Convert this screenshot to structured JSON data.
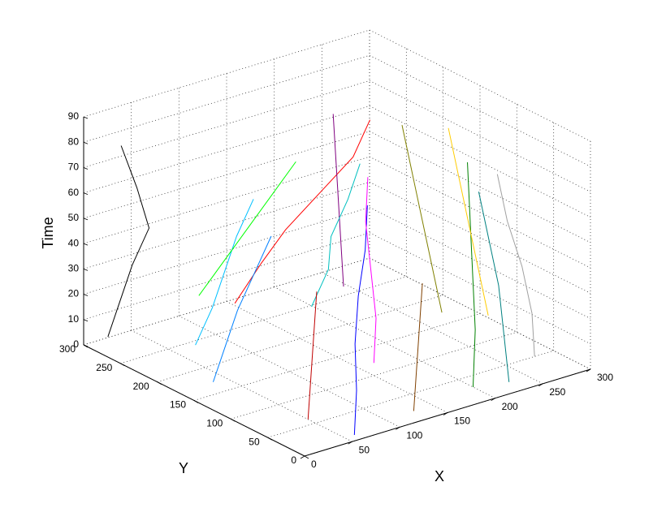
{
  "chart_data": {
    "type": "line3d",
    "xlabel": "X",
    "ylabel": "Y",
    "zlabel": "Time",
    "xlim": [
      0,
      300
    ],
    "ylim": [
      0,
      300
    ],
    "zlim": [
      0,
      90
    ],
    "xticks": [
      0,
      50,
      100,
      150,
      200,
      250,
      300
    ],
    "yticks": [
      0,
      50,
      100,
      150,
      200,
      250,
      300
    ],
    "zticks": [
      0,
      10,
      20,
      30,
      40,
      50,
      60,
      70,
      80,
      90
    ],
    "grid": true,
    "series": [
      {
        "color": "#0000ff",
        "x": [
          60,
          70,
          80,
          95,
          110,
          120
        ],
        "y": [
          10,
          20,
          35,
          50,
          60,
          70
        ],
        "z": [
          0,
          15,
          30,
          45,
          60,
          75
        ]
      },
      {
        "color": "#000000",
        "x": [
          10,
          15,
          20,
          30,
          25,
          20
        ],
        "y": [
          280,
          270,
          260,
          250,
          260,
          275
        ],
        "z": [
          5,
          20,
          35,
          50,
          65,
          80
        ]
      },
      {
        "color": "#ff0000",
        "x": [
          120,
          140,
          150,
          170,
          190,
          200
        ],
        "y": [
          250,
          240,
          220,
          200,
          180,
          170
        ],
        "z": [
          10,
          25,
          40,
          55,
          70,
          85
        ]
      },
      {
        "color": "#008000",
        "x": [
          200,
          210,
          215,
          220,
          225
        ],
        "y": [
          30,
          40,
          50,
          60,
          70
        ],
        "z": [
          0,
          20,
          40,
          60,
          80
        ]
      },
      {
        "color": "#ff00ff",
        "x": [
          150,
          160,
          170,
          180,
          190
        ],
        "y": [
          100,
          110,
          130,
          150,
          160
        ],
        "z": [
          5,
          20,
          35,
          50,
          65
        ]
      },
      {
        "color": "#00c0ff",
        "x": [
          40,
          50,
          55,
          60,
          70
        ],
        "y": [
          200,
          190,
          180,
          170,
          160
        ],
        "z": [
          10,
          25,
          40,
          55,
          70
        ]
      },
      {
        "color": "#808000",
        "x": [
          260,
          265,
          270,
          275,
          280
        ],
        "y": [
          150,
          170,
          190,
          210,
          230
        ],
        "z": [
          5,
          20,
          35,
          50,
          65
        ]
      },
      {
        "color": "#00ff00",
        "x": [
          90,
          100,
          110,
          120,
          130
        ],
        "y": [
          260,
          240,
          220,
          200,
          180
        ],
        "z": [
          15,
          30,
          45,
          60,
          75
        ]
      },
      {
        "color": "#800080",
        "x": [
          180,
          185,
          190,
          195,
          200
        ],
        "y": [
          180,
          190,
          200,
          210,
          220
        ],
        "z": [
          20,
          35,
          50,
          65,
          80
        ]
      },
      {
        "color": "#008080",
        "x": [
          230,
          240,
          250,
          255,
          260
        ],
        "y": [
          20,
          40,
          60,
          80,
          100
        ],
        "z": [
          0,
          15,
          30,
          45,
          60
        ]
      },
      {
        "color": "#ffcc00",
        "x": [
          270,
          275,
          280,
          285,
          290
        ],
        "y": [
          100,
          120,
          140,
          160,
          180
        ],
        "z": [
          10,
          25,
          40,
          55,
          70
        ]
      },
      {
        "color": "#0080ff",
        "x": [
          20,
          25,
          30,
          40,
          50
        ],
        "y": [
          150,
          140,
          130,
          120,
          110
        ],
        "z": [
          5,
          20,
          35,
          50,
          65
        ]
      },
      {
        "color": "#a0a0a0",
        "x": [
          280,
          285,
          290,
          290,
          295
        ],
        "y": [
          50,
          60,
          80,
          100,
          120
        ],
        "z": [
          0,
          15,
          30,
          45,
          60
        ]
      },
      {
        "color": "#804000",
        "x": [
          130,
          140,
          150,
          160,
          170
        ],
        "y": [
          20,
          30,
          40,
          50,
          60
        ],
        "z": [
          0,
          10,
          20,
          30,
          40
        ]
      },
      {
        "color": "#00c0c0",
        "x": [
          100,
          110,
          105,
          115,
          120
        ],
        "y": [
          120,
          110,
          100,
          90,
          80
        ],
        "z": [
          30,
          45,
          60,
          75,
          90
        ]
      },
      {
        "color": "#c00000",
        "x": [
          50,
          60,
          70,
          80,
          90
        ],
        "y": [
          60,
          70,
          80,
          90,
          100
        ],
        "z": [
          0,
          10,
          20,
          30,
          40
        ]
      }
    ]
  }
}
